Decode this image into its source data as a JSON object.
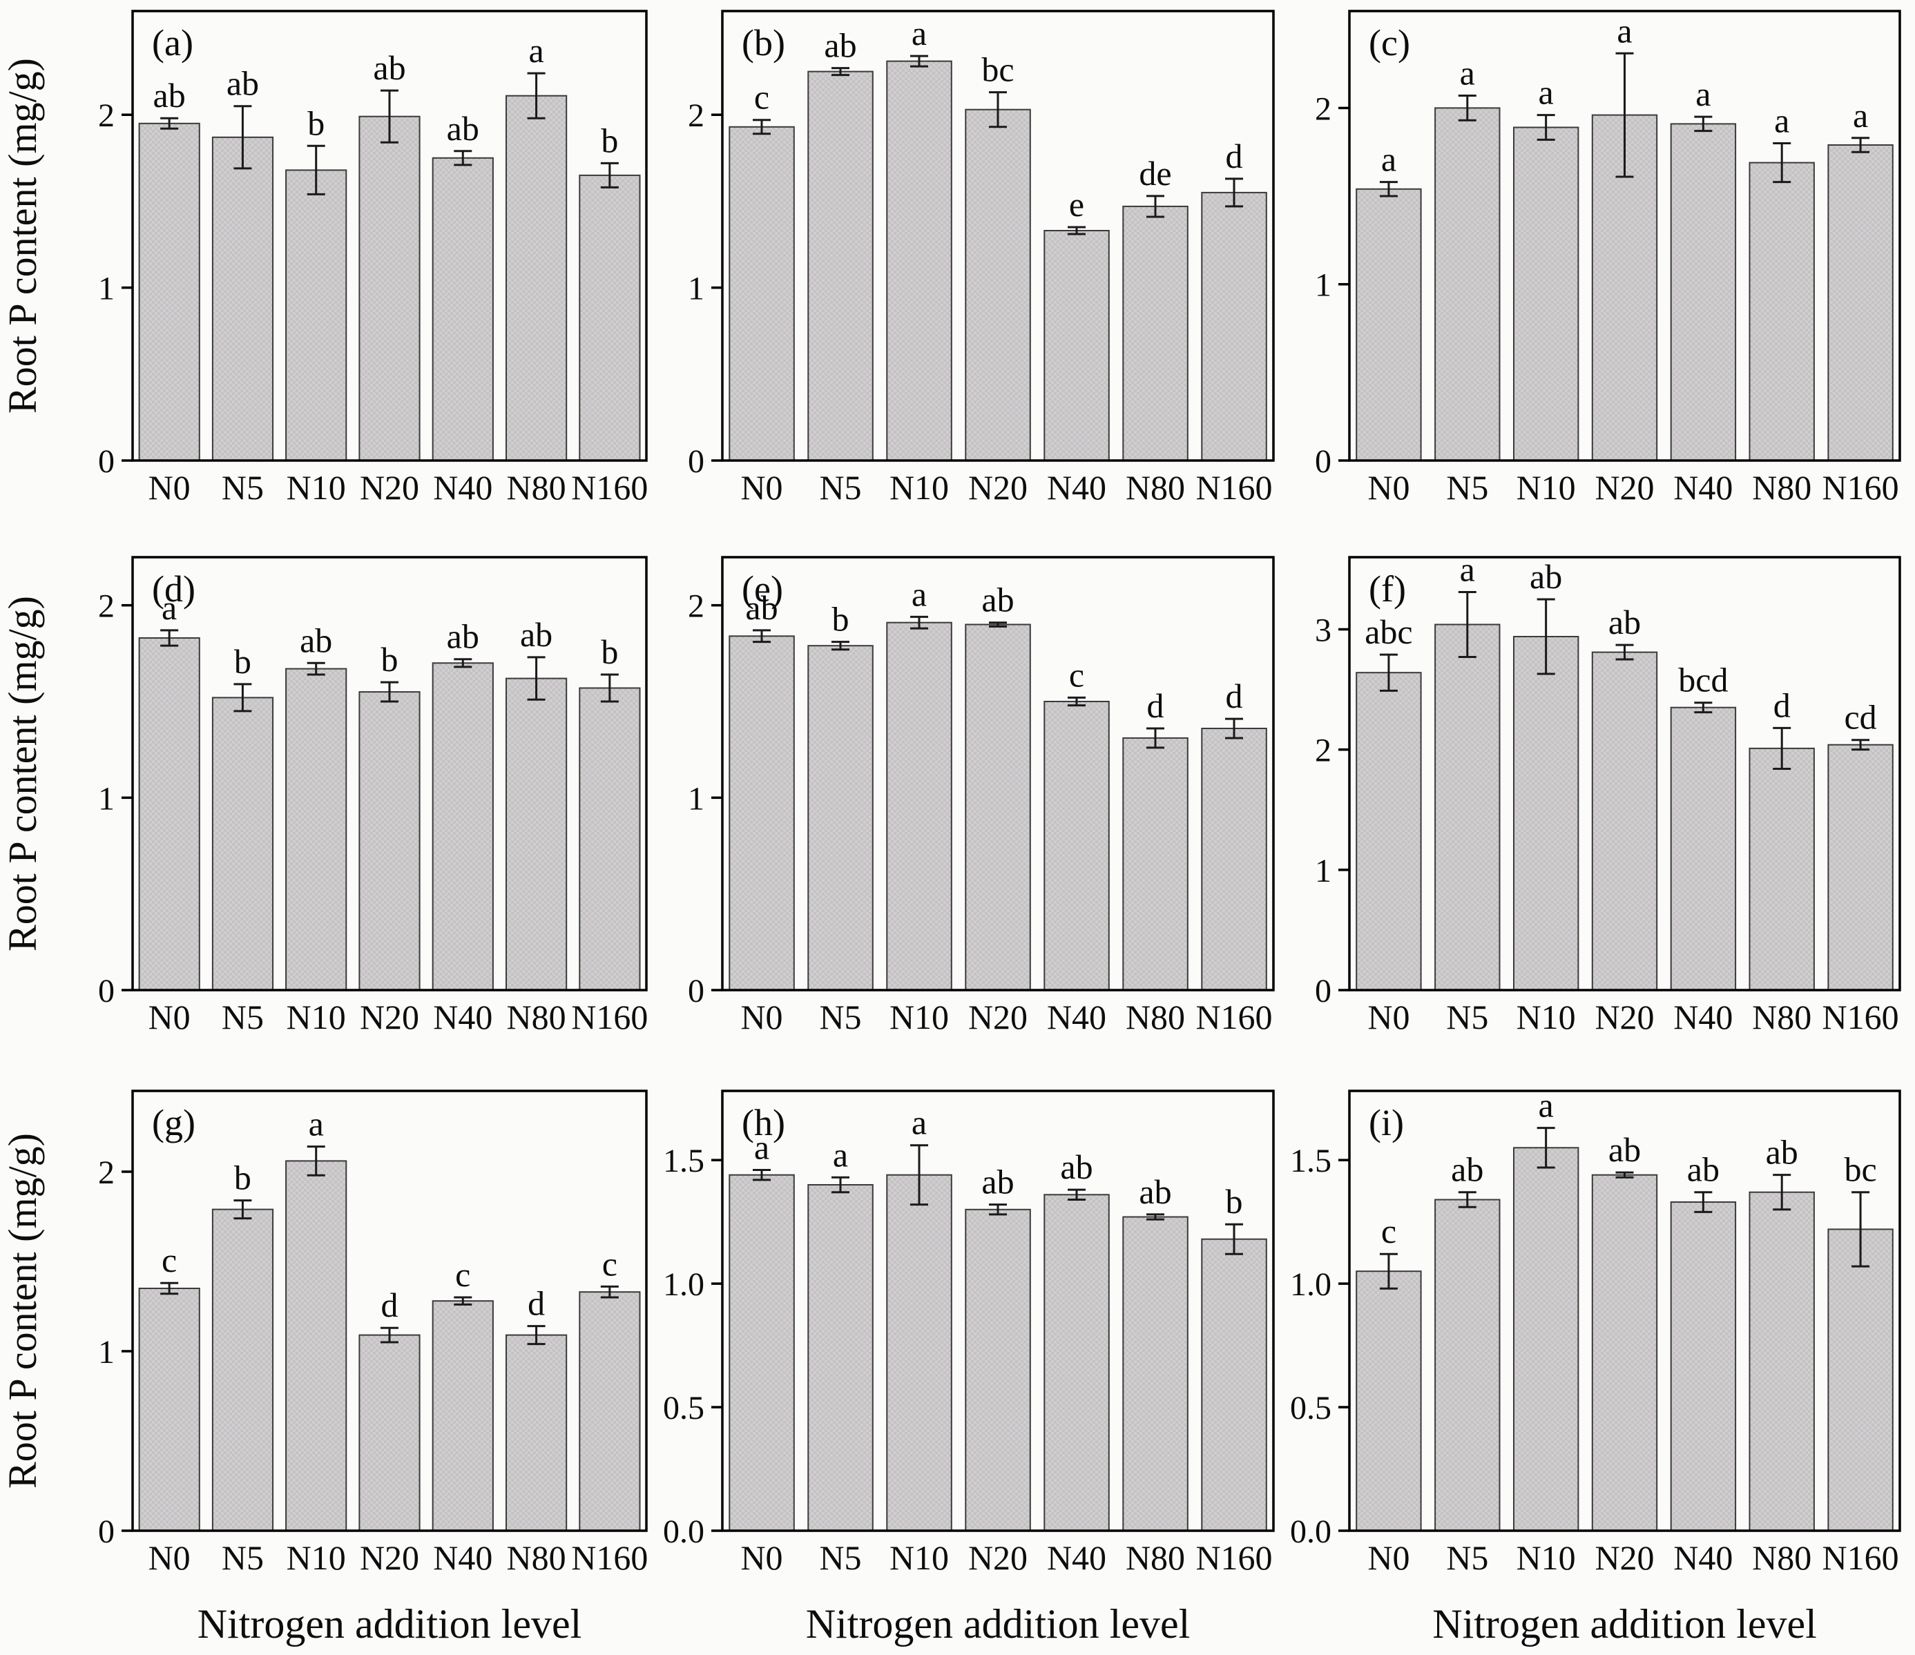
{
  "figure": {
    "ylabel": "Root P content  (mg/g)",
    "xlabel": "Nitrogen addition level",
    "categories": [
      "N0",
      "N5",
      "N10",
      "N20",
      "N40",
      "N80",
      "N160"
    ],
    "colors": {
      "bar_fill_a": "#cdd1c9",
      "bar_fill_b": "#c8bfca",
      "bar_edge": "#3a3a3a",
      "axis": "#000000",
      "error_bar": "#1a1a1a",
      "text": "#0d0d0d",
      "background": "#fbfbfa"
    }
  },
  "chart_data": [
    {
      "type": "bar",
      "panel_label": "(a)",
      "categories": [
        "N0",
        "N5",
        "N10",
        "N20",
        "N40",
        "N80",
        "N160"
      ],
      "values": [
        1.95,
        1.87,
        1.68,
        1.99,
        1.75,
        2.11,
        1.65
      ],
      "errors": [
        0.03,
        0.18,
        0.14,
        0.15,
        0.04,
        0.13,
        0.07
      ],
      "sig_letters": [
        "ab",
        "ab",
        "b",
        "ab",
        "ab",
        "a",
        "b"
      ],
      "ylabel": "Root P content  (mg/g)",
      "xlabel": "",
      "ylim": [
        0,
        2.6
      ],
      "yticks": [
        {
          "v": 0,
          "l": "0"
        },
        {
          "v": 1,
          "l": "1"
        },
        {
          "v": 2,
          "l": "2"
        }
      ],
      "show_ylabel": true,
      "show_xlabel": false
    },
    {
      "type": "bar",
      "panel_label": "(b)",
      "categories": [
        "N0",
        "N5",
        "N10",
        "N20",
        "N40",
        "N80",
        "N160"
      ],
      "values": [
        1.93,
        2.25,
        2.31,
        2.03,
        1.33,
        1.47,
        1.55
      ],
      "errors": [
        0.04,
        0.02,
        0.03,
        0.1,
        0.02,
        0.06,
        0.08
      ],
      "sig_letters": [
        "c",
        "ab",
        "a",
        "bc",
        "e",
        "de",
        "d"
      ],
      "ylabel": "",
      "xlabel": "",
      "ylim": [
        0,
        2.6
      ],
      "yticks": [
        {
          "v": 0,
          "l": "0"
        },
        {
          "v": 1,
          "l": "1"
        },
        {
          "v": 2,
          "l": "2"
        }
      ],
      "show_ylabel": false,
      "show_xlabel": false
    },
    {
      "type": "bar",
      "panel_label": "(c)",
      "categories": [
        "N0",
        "N5",
        "N10",
        "N20",
        "N40",
        "N80",
        "N160"
      ],
      "values": [
        1.54,
        2.0,
        1.89,
        1.96,
        1.91,
        1.69,
        1.79
      ],
      "errors": [
        0.04,
        0.07,
        0.07,
        0.35,
        0.04,
        0.11,
        0.04
      ],
      "sig_letters": [
        "a",
        "a",
        "a",
        "a",
        "a",
        "a",
        "a"
      ],
      "ylabel": "",
      "xlabel": "",
      "ylim": [
        0,
        2.55
      ],
      "yticks": [
        {
          "v": 0,
          "l": "0"
        },
        {
          "v": 1,
          "l": "1"
        },
        {
          "v": 2,
          "l": "2"
        }
      ],
      "show_ylabel": false,
      "show_xlabel": false
    },
    {
      "type": "bar",
      "panel_label": "(d)",
      "categories": [
        "N0",
        "N5",
        "N10",
        "N20",
        "N40",
        "N80",
        "N160"
      ],
      "values": [
        1.83,
        1.52,
        1.67,
        1.55,
        1.7,
        1.62,
        1.57
      ],
      "errors": [
        0.04,
        0.07,
        0.03,
        0.05,
        0.02,
        0.11,
        0.07
      ],
      "sig_letters": [
        "a",
        "b",
        "ab",
        "b",
        "ab",
        "ab",
        "b"
      ],
      "ylabel": "Root P content  (mg/g)",
      "xlabel": "",
      "ylim": [
        0,
        2.25
      ],
      "yticks": [
        {
          "v": 0,
          "l": "0"
        },
        {
          "v": 1,
          "l": "1"
        },
        {
          "v": 2,
          "l": "2"
        }
      ],
      "show_ylabel": true,
      "show_xlabel": false
    },
    {
      "type": "bar",
      "panel_label": "(e)",
      "categories": [
        "N0",
        "N5",
        "N10",
        "N20",
        "N40",
        "N80",
        "N160"
      ],
      "values": [
        1.84,
        1.79,
        1.91,
        1.9,
        1.5,
        1.31,
        1.36
      ],
      "errors": [
        0.03,
        0.02,
        0.03,
        0.01,
        0.02,
        0.05,
        0.05
      ],
      "sig_letters": [
        "ab",
        "b",
        "a",
        "ab",
        "c",
        "d",
        "d"
      ],
      "ylabel": "",
      "xlabel": "",
      "ylim": [
        0,
        2.25
      ],
      "yticks": [
        {
          "v": 0,
          "l": "0"
        },
        {
          "v": 1,
          "l": "1"
        },
        {
          "v": 2,
          "l": "2"
        }
      ],
      "show_ylabel": false,
      "show_xlabel": false
    },
    {
      "type": "bar",
      "panel_label": "(f)",
      "categories": [
        "N0",
        "N5",
        "N10",
        "N20",
        "N40",
        "N80",
        "N160"
      ],
      "values": [
        2.64,
        3.04,
        2.94,
        2.81,
        2.35,
        2.01,
        2.04
      ],
      "errors": [
        0.15,
        0.27,
        0.31,
        0.06,
        0.04,
        0.17,
        0.04
      ],
      "sig_letters": [
        "abc",
        "a",
        "ab",
        "ab",
        "bcd",
        "d",
        "cd"
      ],
      "ylabel": "",
      "xlabel": "",
      "ylim": [
        0,
        3.6
      ],
      "yticks": [
        {
          "v": 0,
          "l": "0"
        },
        {
          "v": 1,
          "l": "1"
        },
        {
          "v": 2,
          "l": "2"
        },
        {
          "v": 3,
          "l": "3"
        }
      ],
      "show_ylabel": false,
      "show_xlabel": false
    },
    {
      "type": "bar",
      "panel_label": "(g)",
      "categories": [
        "N0",
        "N5",
        "N10",
        "N20",
        "N40",
        "N80",
        "N160"
      ],
      "values": [
        1.35,
        1.79,
        2.06,
        1.09,
        1.28,
        1.09,
        1.33
      ],
      "errors": [
        0.03,
        0.05,
        0.08,
        0.04,
        0.02,
        0.05,
        0.03
      ],
      "sig_letters": [
        "c",
        "b",
        "a",
        "d",
        "c",
        "d",
        "c"
      ],
      "ylabel": "Root P content  (mg/g)",
      "xlabel": "Nitrogen addition level",
      "ylim": [
        0,
        2.45
      ],
      "yticks": [
        {
          "v": 0,
          "l": "0"
        },
        {
          "v": 1,
          "l": "1"
        },
        {
          "v": 2,
          "l": "2"
        }
      ],
      "show_ylabel": true,
      "show_xlabel": true
    },
    {
      "type": "bar",
      "panel_label": "(h)",
      "categories": [
        "N0",
        "N5",
        "N10",
        "N20",
        "N40",
        "N80",
        "N160"
      ],
      "values": [
        1.44,
        1.4,
        1.44,
        1.3,
        1.36,
        1.27,
        1.18
      ],
      "errors": [
        0.02,
        0.03,
        0.12,
        0.02,
        0.02,
        0.01,
        0.06
      ],
      "sig_letters": [
        "a",
        "a",
        "a",
        "ab",
        "ab",
        "ab",
        "b"
      ],
      "ylabel": "",
      "xlabel": "Nitrogen addition level",
      "ylim": [
        0,
        1.78
      ],
      "yticks": [
        {
          "v": 0,
          "l": "0.0"
        },
        {
          "v": 0.5,
          "l": "0.5"
        },
        {
          "v": 1,
          "l": "1.0"
        },
        {
          "v": 1.5,
          "l": "1.5"
        }
      ],
      "show_ylabel": false,
      "show_xlabel": true
    },
    {
      "type": "bar",
      "panel_label": "(i)",
      "categories": [
        "N0",
        "N5",
        "N10",
        "N20",
        "N40",
        "N80",
        "N160"
      ],
      "values": [
        1.05,
        1.34,
        1.55,
        1.44,
        1.33,
        1.37,
        1.22
      ],
      "errors": [
        0.07,
        0.03,
        0.08,
        0.01,
        0.04,
        0.07,
        0.15
      ],
      "sig_letters": [
        "c",
        "ab",
        "a",
        "ab",
        "ab",
        "ab",
        "bc"
      ],
      "ylabel": "",
      "xlabel": "Nitrogen addition level",
      "ylim": [
        0,
        1.78
      ],
      "yticks": [
        {
          "v": 0,
          "l": "0.0"
        },
        {
          "v": 0.5,
          "l": "0.5"
        },
        {
          "v": 1,
          "l": "1.0"
        },
        {
          "v": 1.5,
          "l": "1.5"
        }
      ],
      "show_ylabel": false,
      "show_xlabel": true
    }
  ]
}
